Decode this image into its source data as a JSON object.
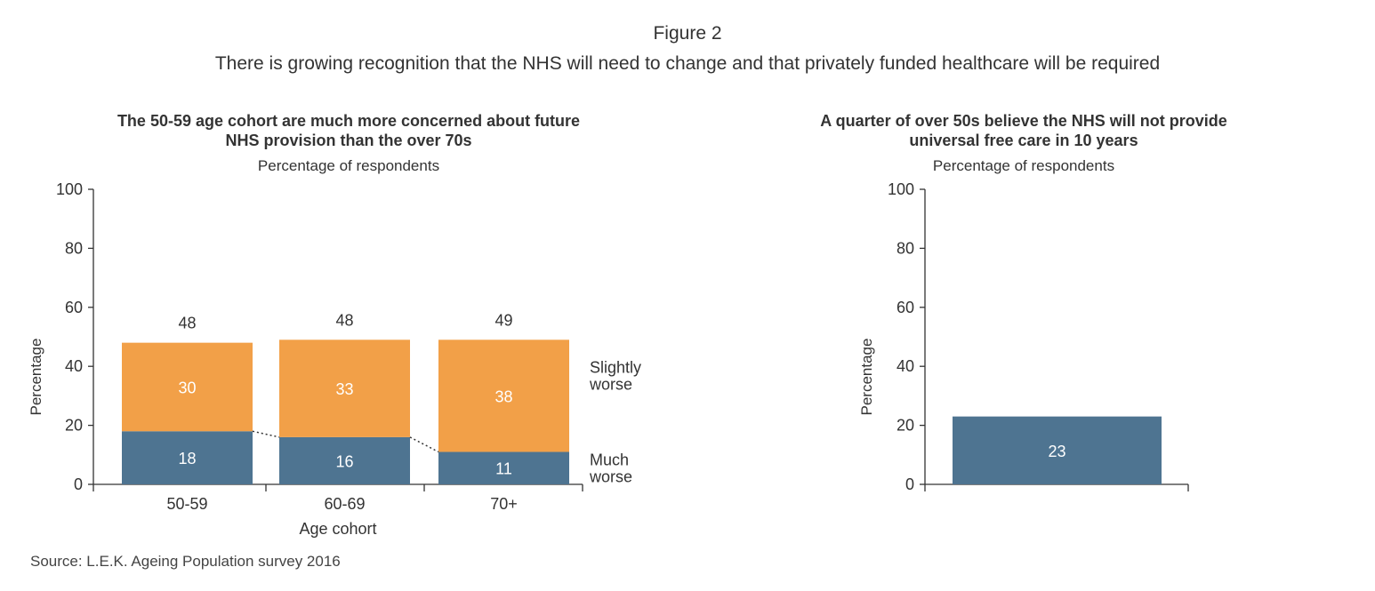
{
  "figure": {
    "title": "Figure 2",
    "subtitle": "There is growing recognition that the NHS will need to change and that privately funded healthcare will be required",
    "source": "Source: L.E.K. Ageing Population survey 2016"
  },
  "colors": {
    "much_worse": "#4e7491",
    "slightly_worse": "#f2a048",
    "axis": "#333333",
    "text": "#333333"
  },
  "chart_data": [
    {
      "type": "bar",
      "stacked": true,
      "title": "The 50-59 age cohort are much more concerned about future NHS provision than the over 70s",
      "title_lines": [
        "The 50-59 age cohort are much more concerned about future",
        "NHS provision than the over 70s"
      ],
      "subtitle": "Percentage of respondents",
      "xlabel": "Age cohort",
      "ylabel": "Percentage",
      "ylim": [
        0,
        100
      ],
      "yticks": [
        0,
        20,
        40,
        60,
        80,
        100
      ],
      "categories": [
        "50-59",
        "60-69",
        "70+"
      ],
      "series": [
        {
          "name": "Much worse",
          "label_lines": [
            "Much",
            "worse"
          ],
          "values": [
            18,
            16,
            11
          ]
        },
        {
          "name": "Slightly worse",
          "label_lines": [
            "Slightly",
            "worse"
          ],
          "values": [
            30,
            33,
            38
          ]
        }
      ],
      "totals": [
        48,
        48,
        49
      ],
      "grid": false
    },
    {
      "type": "bar",
      "title": "A quarter of over 50s believe the NHS will not provide universal free care in 10 years",
      "title_lines": [
        "A quarter of over 50s believe the NHS will not provide",
        "universal free care in 10 years"
      ],
      "subtitle": "Percentage of respondents",
      "xlabel": "",
      "ylabel": "Percentage",
      "ylim": [
        0,
        100
      ],
      "yticks": [
        0,
        20,
        40,
        60,
        80,
        100
      ],
      "categories": [
        ""
      ],
      "values": [
        23
      ],
      "grid": false
    }
  ]
}
